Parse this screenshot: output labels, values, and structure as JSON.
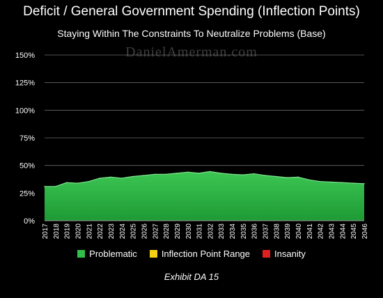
{
  "chart_data": {
    "type": "area",
    "title": "Deficit / General Government Spending (Inflection Points)",
    "subtitle": "Staying Within The Constraints To Neutralize Problems (Base)",
    "watermark": "DanielAmerman.com",
    "caption": "Exhibit DA 15",
    "ylim": [
      0,
      150
    ],
    "yticks": [
      0,
      25,
      50,
      75,
      100,
      125,
      150
    ],
    "ytick_labels": [
      "0%",
      "25%",
      "50%",
      "75%",
      "100%",
      "125%",
      "150%"
    ],
    "grid": true,
    "legend_position": "bottom",
    "x": [
      "2017",
      "2018",
      "2019",
      "2020",
      "2021",
      "2022",
      "2023",
      "2024",
      "2025",
      "2026",
      "2027",
      "2028",
      "2029",
      "2030",
      "2031",
      "2032",
      "2033",
      "2034",
      "2035",
      "2036",
      "2037",
      "2038",
      "2039",
      "2040",
      "2041",
      "2042",
      "2043",
      "2044",
      "2045",
      "2046"
    ],
    "series": [
      {
        "name": "Problematic",
        "color": "#27b33f",
        "values": [
          31,
          31,
          34.5,
          34,
          35.5,
          38.5,
          39.5,
          38.5,
          40,
          41,
          42,
          42,
          43,
          44,
          43,
          44.5,
          43,
          42,
          41.5,
          42.5,
          41,
          40,
          39,
          39.5,
          37,
          35.5,
          35,
          34.5,
          34,
          33.5
        ]
      }
    ],
    "legend": [
      {
        "name": "Problematic",
        "color": "#2fbf4a"
      },
      {
        "name": "Inflection Point Range",
        "color": "#f5cf12"
      },
      {
        "name": "Insanity",
        "color": "#e02020"
      }
    ]
  }
}
